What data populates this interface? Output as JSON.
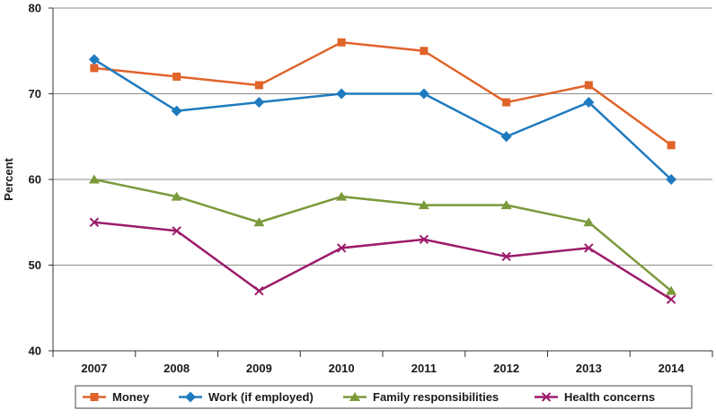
{
  "chart_data": {
    "type": "line",
    "title": "",
    "xlabel": "",
    "ylabel": "Percent",
    "ylim": [
      40,
      80
    ],
    "yticks": [
      40,
      50,
      60,
      70,
      80
    ],
    "grid": "horizontal",
    "legend_position": "bottom",
    "categories": [
      "2007",
      "2008",
      "2009",
      "2010",
      "2011",
      "2012",
      "2013",
      "2014"
    ],
    "series": [
      {
        "name": "Money",
        "color": "#e0632a",
        "marker": "square",
        "values": [
          73,
          72,
          71,
          76,
          75,
          69,
          71,
          64
        ]
      },
      {
        "name": "Work (if employed)",
        "color": "#1f7bbf",
        "marker": "diamond",
        "values": [
          74,
          68,
          69,
          70,
          70,
          65,
          69,
          60
        ]
      },
      {
        "name": "Family responsibilities",
        "color": "#7b9a3c",
        "marker": "triangle",
        "values": [
          60,
          58,
          55,
          58,
          57,
          57,
          55,
          47
        ]
      },
      {
        "name": "Health concerns",
        "color": "#9c1b6b",
        "marker": "x",
        "values": [
          55,
          54,
          47,
          52,
          53,
          51,
          52,
          46
        ]
      }
    ]
  }
}
